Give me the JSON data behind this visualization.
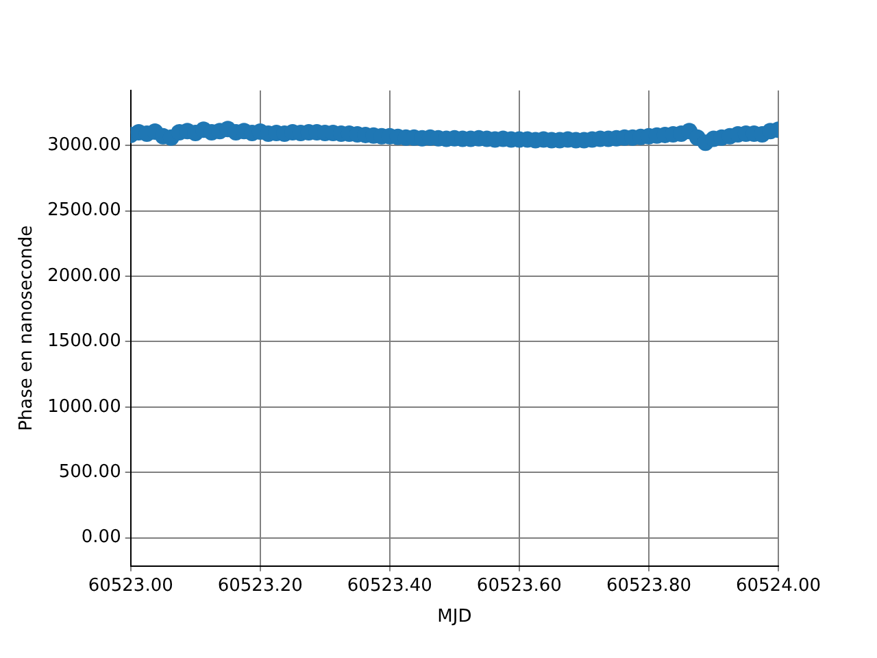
{
  "chart_data": {
    "type": "scatter",
    "xlabel": "MJD",
    "ylabel": "Phase en nanoseconde",
    "x": [
      60523,
      60523.0125,
      60523.025,
      60523.0375,
      60523.05,
      60523.0625,
      60523.075,
      60523.0875,
      60523.1,
      60523.1125,
      60523.125,
      60523.1375,
      60523.15,
      60523.1625,
      60523.175,
      60523.1875,
      60523.2,
      60523.2125,
      60523.225,
      60523.2375,
      60523.25,
      60523.2625,
      60523.275,
      60523.2875,
      60523.3,
      60523.3125,
      60523.325,
      60523.3375,
      60523.35,
      60523.3625,
      60523.375,
      60523.3875,
      60523.4,
      60523.4125,
      60523.425,
      60523.4375,
      60523.45,
      60523.4625,
      60523.475,
      60523.4875,
      60523.5,
      60523.5125,
      60523.525,
      60523.5375,
      60523.55,
      60523.5625,
      60523.575,
      60523.5875,
      60523.6,
      60523.6125,
      60523.625,
      60523.6375,
      60523.65,
      60523.6625,
      60523.675,
      60523.6875,
      60523.7,
      60523.7125,
      60523.725,
      60523.7375,
      60523.75,
      60523.7625,
      60523.775,
      60523.7875,
      60523.8,
      60523.8125,
      60523.825,
      60523.8375,
      60523.85,
      60523.8625,
      60523.875,
      60523.8875,
      60523.9,
      60523.9125,
      60523.925,
      60523.9375,
      60523.95,
      60523.9625,
      60523.975,
      60523.9875,
      60524
    ],
    "series": [
      {
        "color": "#1f77b4",
        "values": [
          3080,
          3100,
          3090,
          3105,
          3070,
          3060,
          3100,
          3110,
          3095,
          3120,
          3100,
          3110,
          3125,
          3100,
          3110,
          3095,
          3105,
          3090,
          3095,
          3090,
          3100,
          3095,
          3100,
          3100,
          3095,
          3095,
          3090,
          3090,
          3085,
          3080,
          3075,
          3070,
          3070,
          3065,
          3060,
          3060,
          3055,
          3060,
          3055,
          3050,
          3055,
          3050,
          3050,
          3055,
          3050,
          3045,
          3050,
          3045,
          3045,
          3045,
          3040,
          3045,
          3040,
          3040,
          3045,
          3040,
          3040,
          3045,
          3050,
          3050,
          3055,
          3060,
          3060,
          3065,
          3070,
          3075,
          3080,
          3085,
          3090,
          3110,
          3060,
          3020,
          3050,
          3060,
          3070,
          3085,
          3090,
          3090,
          3085,
          3110,
          3120
        ]
      }
    ],
    "xlim": [
      60523,
      60524
    ],
    "xticks": [
      {
        "value": 60523,
        "label": "60523.00"
      },
      {
        "value": 60523.2,
        "label": "60523.20"
      },
      {
        "value": 60523.4,
        "label": "60523.40"
      },
      {
        "value": 60523.6,
        "label": "60523.60"
      },
      {
        "value": 60523.8,
        "label": "60523.80"
      },
      {
        "value": 60524,
        "label": "60524.00"
      }
    ],
    "ylim": [
      -215,
      3420
    ],
    "yticks": [
      {
        "value": 0,
        "label": "0.00"
      },
      {
        "value": 500,
        "label": "500.00"
      },
      {
        "value": 1000,
        "label": "1000.00"
      },
      {
        "value": 1500,
        "label": "1500.00"
      },
      {
        "value": 2000,
        "label": "2000.00"
      },
      {
        "value": 2500,
        "label": "2500.00"
      },
      {
        "value": 3000,
        "label": "3000.00"
      }
    ],
    "grid": true,
    "marker": "circle"
  }
}
